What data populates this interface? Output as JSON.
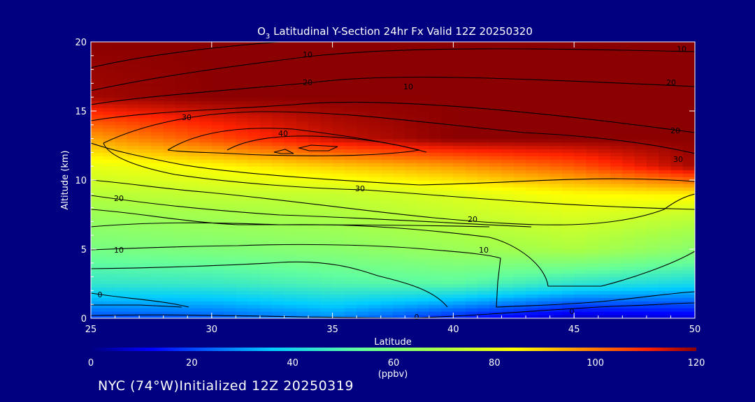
{
  "chart_data": {
    "type": "heatmap",
    "title_main": "O",
    "title_sub": "3",
    "title_rest": " Latitudinal Y-Section 24hr  Fx Valid 12Z 20250320",
    "xlabel": "Latitude",
    "ylabel": "Altitude (km)",
    "xlim": [
      25,
      50
    ],
    "ylim": [
      0,
      20
    ],
    "x_ticks": [
      "25",
      "30",
      "35",
      "40",
      "45",
      "50"
    ],
    "y_ticks": [
      "0",
      "5",
      "10",
      "15",
      "20"
    ],
    "colorbar": {
      "range": [
        0,
        120
      ],
      "ticks": [
        "0",
        "20",
        "40",
        "60",
        "80",
        "100",
        "120"
      ],
      "unit": "(ppbv)"
    },
    "contour_labels": [
      "10",
      "20",
      "30",
      "40",
      "20",
      "10",
      "0",
      "10",
      "20",
      "30",
      "30",
      "20",
      "10",
      "20",
      "10",
      "0",
      "0"
    ],
    "fields": [
      {
        "lat": 25,
        "levels": [
          20,
          45,
          58,
          66,
          72,
          80,
          95,
          118,
          120
        ]
      },
      {
        "lat": 30,
        "levels": [
          22,
          46,
          60,
          68,
          74,
          84,
          105,
          120,
          120
        ]
      },
      {
        "lat": 35,
        "levels": [
          28,
          50,
          62,
          70,
          74,
          90,
          115,
          120,
          120
        ]
      },
      {
        "lat": 40,
        "levels": [
          15,
          52,
          66,
          74,
          78,
          96,
          120,
          120,
          120
        ]
      },
      {
        "lat": 45,
        "levels": [
          5,
          44,
          70,
          78,
          84,
          104,
          120,
          120,
          120
        ]
      },
      {
        "lat": 50,
        "levels": [
          8,
          40,
          62,
          74,
          86,
          118,
          120,
          120,
          120
        ]
      }
    ],
    "field_altitudes": [
      0,
      2.5,
      5,
      7.5,
      9,
      11,
      13,
      16,
      20
    ]
  },
  "footer": "NYC (74°W)Initialized 12Z 20250319"
}
